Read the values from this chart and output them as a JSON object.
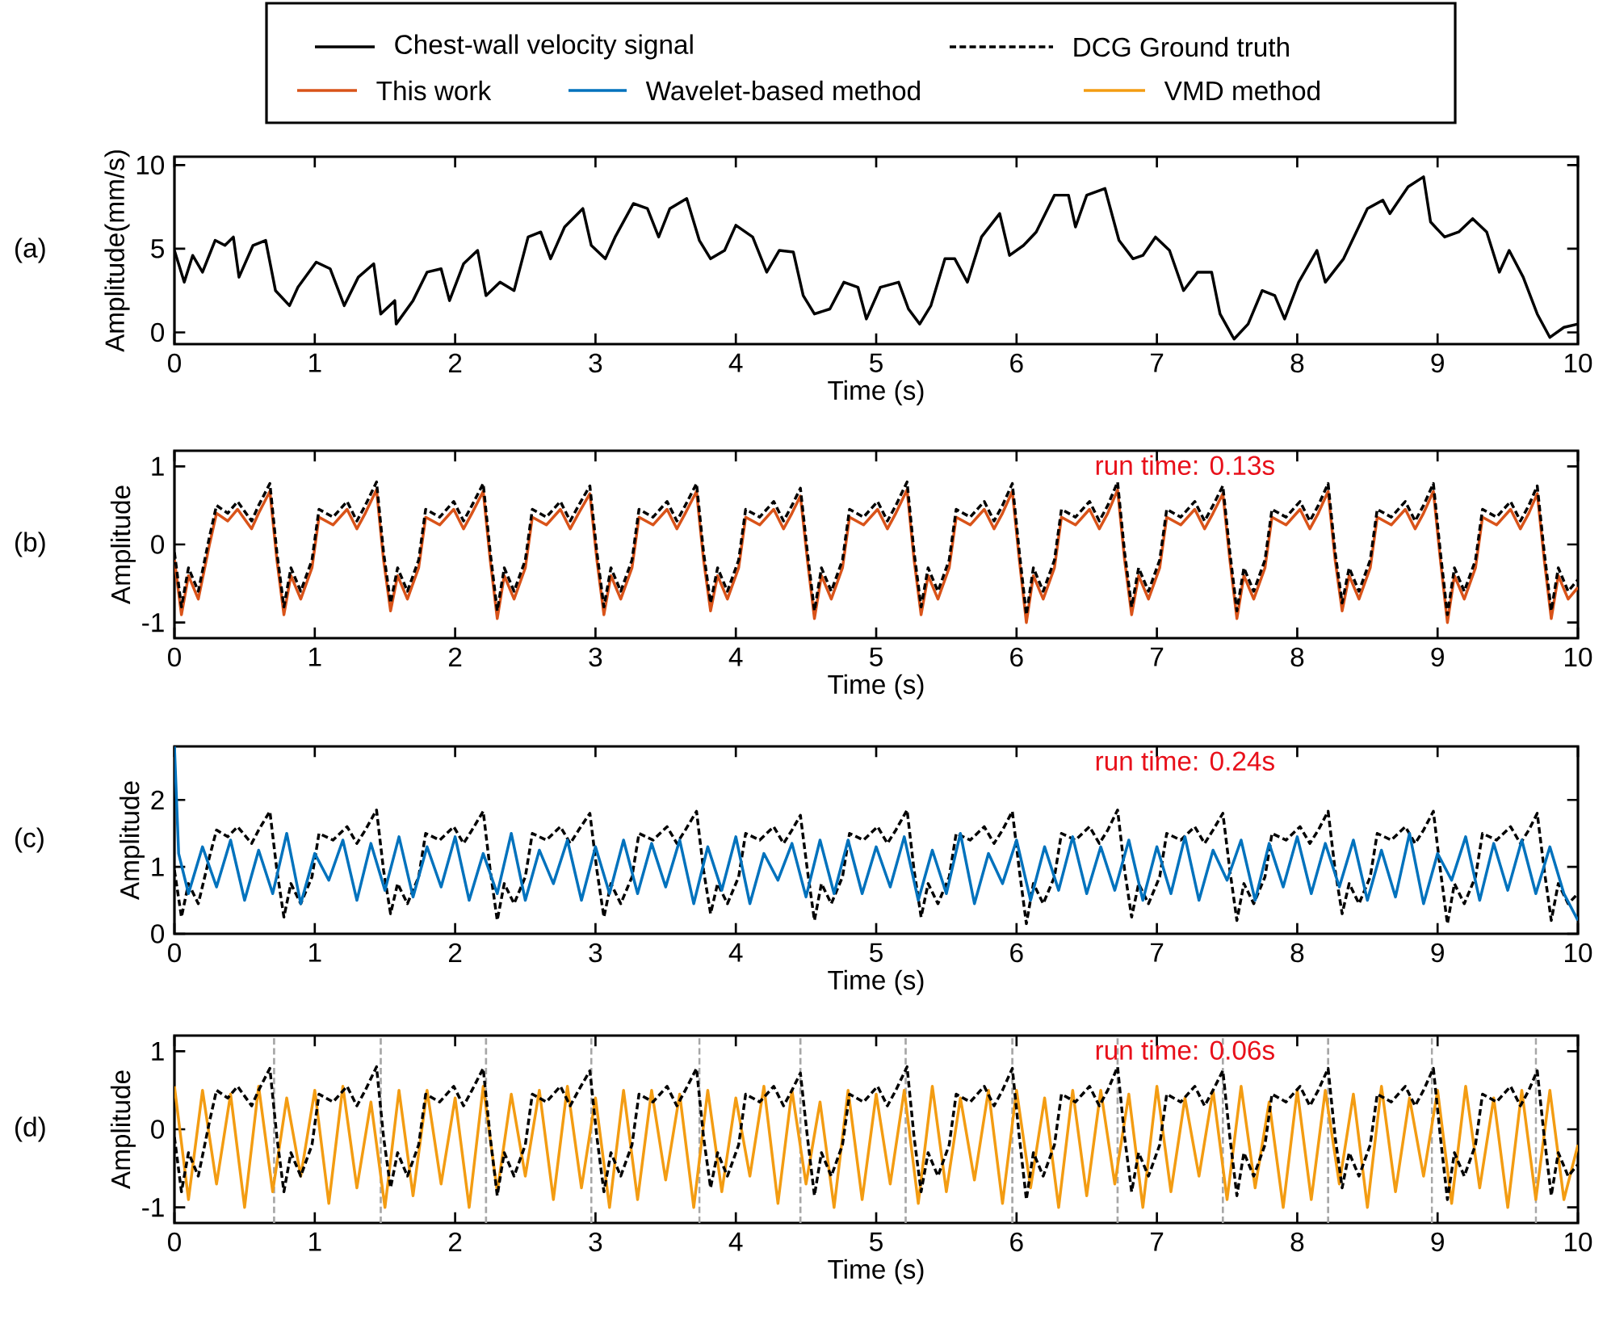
{
  "chart_data": [
    {
      "type": "line",
      "xlabel": "Time (s)",
      "ylabel": "Amplitude(mm/s)",
      "annotations": [
        "(a)"
      ],
      "legend": "top",
      "xlim": [
        0,
        10
      ],
      "ylim": [
        -0.7,
        10.5
      ],
      "xticks": [
        0,
        1,
        2,
        3,
        4,
        5,
        6,
        7,
        8,
        9,
        10
      ],
      "yticks": [
        0,
        5,
        10
      ],
      "x": [
        0,
        0.07,
        0.13,
        0.2,
        0.29,
        0.36,
        0.42,
        0.46,
        0.56,
        0.65,
        0.72,
        0.82,
        0.88,
        1.01,
        1.11,
        1.21,
        1.31,
        1.42,
        1.47,
        1.57,
        1.58,
        1.7,
        1.8,
        1.9,
        1.96,
        2.06,
        2.16,
        2.22,
        2.32,
        2.42,
        2.52,
        2.61,
        2.68,
        2.78,
        2.91,
        2.97,
        3.07,
        3.14,
        3.27,
        3.37,
        3.45,
        3.53,
        3.65,
        3.74,
        3.82,
        3.92,
        4.0,
        4.12,
        4.22,
        4.31,
        4.41,
        4.48,
        4.56,
        4.67,
        4.77,
        4.87,
        4.93,
        5.03,
        5.16,
        5.23,
        5.31,
        5.39,
        5.49,
        5.56,
        5.65,
        5.75,
        5.88,
        5.95,
        6.05,
        6.14,
        6.27,
        6.37,
        6.42,
        6.5,
        6.63,
        6.73,
        6.83,
        6.9,
        6.99,
        7.09,
        7.19,
        7.29,
        7.39,
        7.45,
        7.55,
        7.65,
        7.75,
        7.84,
        7.91,
        8.01,
        8.14,
        8.2,
        8.33,
        8.5,
        8.61,
        8.66,
        8.79,
        8.9,
        8.95,
        9.05,
        9.15,
        9.25,
        9.35,
        9.44,
        9.51,
        9.61,
        9.71,
        9.8,
        9.9,
        10
      ],
      "series": [
        {
          "name": "Chest-wall velocity signal",
          "color": "#000000",
          "values": [
            4.9,
            3.0,
            4.6,
            3.6,
            5.5,
            5.2,
            5.7,
            3.3,
            5.2,
            5.5,
            2.5,
            1.6,
            2.7,
            4.2,
            3.8,
            1.6,
            3.3,
            4.1,
            1.1,
            1.9,
            0.5,
            1.9,
            3.6,
            3.8,
            1.9,
            4.1,
            4.9,
            2.2,
            3.0,
            2.5,
            5.7,
            6.0,
            4.4,
            6.3,
            7.4,
            5.2,
            4.4,
            5.7,
            7.7,
            7.4,
            5.7,
            7.4,
            8.0,
            5.5,
            4.4,
            4.9,
            6.4,
            5.7,
            3.6,
            4.9,
            4.8,
            2.2,
            1.1,
            1.4,
            3.0,
            2.7,
            0.8,
            2.7,
            3.0,
            1.4,
            0.5,
            1.6,
            4.4,
            4.4,
            3.0,
            5.7,
            7.1,
            4.6,
            5.2,
            6.0,
            8.2,
            8.2,
            6.3,
            8.2,
            8.6,
            5.5,
            4.4,
            4.6,
            5.7,
            4.9,
            2.5,
            3.6,
            3.6,
            1.1,
            -0.4,
            0.5,
            2.5,
            2.2,
            0.8,
            3.0,
            4.9,
            3.0,
            4.4,
            7.4,
            7.9,
            7.1,
            8.7,
            9.3,
            6.6,
            5.7,
            6.0,
            6.8,
            6.0,
            3.6,
            4.9,
            3.3,
            1.1,
            -0.3,
            0.3,
            0.5
          ]
        }
      ]
    },
    {
      "type": "line",
      "xlabel": "Time (s)",
      "ylabel": "Amplitude",
      "annotations": [
        "(b)",
        "run time: 0.13s"
      ],
      "legend": "top",
      "xlim": [
        0,
        10
      ],
      "ylim": [
        -1.2,
        1.2
      ],
      "xticks": [
        0,
        1,
        2,
        3,
        4,
        5,
        6,
        7,
        8,
        9,
        10
      ],
      "yticks": [
        -1,
        0,
        1
      ],
      "x": [
        0,
        0.05,
        0.1,
        0.17,
        0.25,
        0.3,
        0.38,
        0.45,
        0.55,
        0.6,
        0.68,
        0.73,
        0.78,
        0.83,
        0.9,
        0.98,
        1.03,
        1.13,
        1.23,
        1.3,
        1.36,
        1.44,
        1.49,
        1.54,
        1.59,
        1.66,
        1.74,
        1.79,
        1.89,
        1.99,
        2.06,
        2.12,
        2.2,
        2.25,
        2.3,
        2.35,
        2.42,
        2.5,
        2.55,
        2.65,
        2.75,
        2.82,
        2.88,
        2.96,
        3.01,
        3.06,
        3.11,
        3.18,
        3.26,
        3.31,
        3.41,
        3.51,
        3.58,
        3.64,
        3.72,
        3.77,
        3.82,
        3.87,
        3.94,
        4.02,
        4.07,
        4.17,
        4.27,
        4.34,
        4.4,
        4.46,
        4.51,
        4.56,
        4.61,
        4.68,
        4.76,
        4.81,
        4.91,
        5.01,
        5.08,
        5.14,
        5.22,
        5.27,
        5.32,
        5.37,
        5.44,
        5.52,
        5.57,
        5.67,
        5.77,
        5.84,
        5.9,
        5.97,
        6.02,
        6.07,
        6.12,
        6.19,
        6.27,
        6.32,
        6.42,
        6.52,
        6.59,
        6.65,
        6.72,
        6.77,
        6.82,
        6.87,
        6.94,
        7.02,
        7.07,
        7.17,
        7.27,
        7.34,
        7.4,
        7.47,
        7.52,
        7.57,
        7.62,
        7.69,
        7.77,
        7.82,
        7.92,
        8.02,
        8.09,
        8.15,
        8.22,
        8.27,
        8.32,
        8.37,
        8.44,
        8.52,
        8.57,
        8.67,
        8.77,
        8.84,
        8.9,
        8.97,
        9.02,
        9.07,
        9.12,
        9.19,
        9.27,
        9.32,
        9.42,
        9.52,
        9.59,
        9.65,
        9.71,
        9.76,
        9.81,
        9.86,
        9.93,
        10
      ],
      "series": [
        {
          "name": "This work",
          "color": "#d95319",
          "values": [
            -0.2,
            -0.9,
            -0.4,
            -0.7,
            0.0,
            0.4,
            0.3,
            0.45,
            0.2,
            0.4,
            0.68,
            -0.2,
            -0.9,
            -0.4,
            -0.7,
            -0.3,
            0.35,
            0.25,
            0.45,
            0.2,
            0.4,
            0.7,
            -0.2,
            -0.85,
            -0.4,
            -0.7,
            -0.3,
            0.35,
            0.25,
            0.45,
            0.2,
            0.4,
            0.68,
            -0.2,
            -0.95,
            -0.4,
            -0.7,
            -0.3,
            0.35,
            0.25,
            0.45,
            0.2,
            0.4,
            0.65,
            -0.2,
            -0.9,
            -0.4,
            -0.7,
            -0.3,
            0.35,
            0.25,
            0.45,
            0.2,
            0.4,
            0.68,
            -0.2,
            -0.85,
            -0.4,
            -0.7,
            -0.3,
            0.35,
            0.25,
            0.45,
            0.2,
            0.4,
            0.62,
            -0.2,
            -0.95,
            -0.4,
            -0.7,
            -0.3,
            0.35,
            0.25,
            0.45,
            0.2,
            0.4,
            0.7,
            -0.2,
            -0.9,
            -0.4,
            -0.7,
            -0.3,
            0.35,
            0.25,
            0.45,
            0.2,
            0.4,
            0.68,
            -0.2,
            -1.0,
            -0.4,
            -0.7,
            -0.3,
            0.35,
            0.25,
            0.45,
            0.2,
            0.4,
            0.7,
            -0.2,
            -0.9,
            -0.4,
            -0.7,
            -0.3,
            0.35,
            0.25,
            0.45,
            0.2,
            0.4,
            0.65,
            -0.2,
            -0.95,
            -0.4,
            -0.7,
            -0.3,
            0.35,
            0.25,
            0.45,
            0.2,
            0.4,
            0.68,
            -0.2,
            -0.85,
            -0.4,
            -0.7,
            -0.3,
            0.35,
            0.25,
            0.45,
            0.2,
            0.4,
            0.68,
            -0.2,
            -1.0,
            -0.4,
            -0.7,
            -0.3,
            0.35,
            0.25,
            0.45,
            0.2,
            0.4,
            0.65,
            -0.2,
            -0.95,
            -0.4,
            -0.7,
            -0.55
          ]
        },
        {
          "name": "DCG Ground truth",
          "color": "#000000",
          "line_style": "dashed",
          "values": [
            -0.1,
            -0.8,
            -0.3,
            -0.6,
            0.1,
            0.5,
            0.4,
            0.55,
            0.3,
            0.5,
            0.78,
            -0.1,
            -0.8,
            -0.3,
            -0.6,
            -0.2,
            0.45,
            0.35,
            0.55,
            0.3,
            0.5,
            0.8,
            -0.1,
            -0.75,
            -0.3,
            -0.6,
            -0.2,
            0.45,
            0.35,
            0.55,
            0.3,
            0.5,
            0.78,
            -0.1,
            -0.85,
            -0.3,
            -0.6,
            -0.2,
            0.45,
            0.35,
            0.55,
            0.3,
            0.5,
            0.75,
            -0.1,
            -0.8,
            -0.3,
            -0.6,
            -0.2,
            0.45,
            0.35,
            0.55,
            0.3,
            0.5,
            0.78,
            -0.1,
            -0.75,
            -0.3,
            -0.6,
            -0.2,
            0.45,
            0.35,
            0.55,
            0.3,
            0.5,
            0.72,
            -0.1,
            -0.85,
            -0.3,
            -0.6,
            -0.2,
            0.45,
            0.35,
            0.55,
            0.3,
            0.5,
            0.8,
            -0.1,
            -0.8,
            -0.3,
            -0.6,
            -0.2,
            0.45,
            0.35,
            0.55,
            0.3,
            0.5,
            0.78,
            -0.1,
            -0.9,
            -0.3,
            -0.6,
            -0.2,
            0.45,
            0.35,
            0.55,
            0.3,
            0.5,
            0.8,
            -0.1,
            -0.8,
            -0.3,
            -0.6,
            -0.2,
            0.45,
            0.35,
            0.55,
            0.3,
            0.5,
            0.75,
            -0.1,
            -0.85,
            -0.3,
            -0.6,
            -0.2,
            0.45,
            0.35,
            0.55,
            0.3,
            0.5,
            0.78,
            -0.1,
            -0.75,
            -0.3,
            -0.6,
            -0.2,
            0.45,
            0.35,
            0.55,
            0.3,
            0.5,
            0.78,
            -0.1,
            -0.9,
            -0.3,
            -0.6,
            -0.2,
            0.45,
            0.35,
            0.55,
            0.3,
            0.5,
            0.75,
            -0.1,
            -0.85,
            -0.3,
            -0.6,
            -0.45
          ]
        }
      ]
    },
    {
      "type": "line",
      "xlabel": "Time (s)",
      "ylabel": "Amplitude",
      "annotations": [
        "(c)",
        "run time: 0.24s"
      ],
      "legend": "top",
      "xlim": [
        0,
        10
      ],
      "ylim": [
        0,
        2.8
      ],
      "xticks": [
        0,
        1,
        2,
        3,
        4,
        5,
        6,
        7,
        8,
        9,
        10
      ],
      "yticks": [
        0,
        1,
        2
      ],
      "x": [
        0,
        0.05,
        0.1,
        0.17,
        0.25,
        0.3,
        0.38,
        0.45,
        0.55,
        0.6,
        0.68,
        0.73,
        0.78,
        0.83,
        0.9,
        0.98,
        1.03,
        1.13,
        1.23,
        1.3,
        1.36,
        1.44,
        1.49,
        1.54,
        1.59,
        1.66,
        1.74,
        1.79,
        1.89,
        1.99,
        2.06,
        2.12,
        2.2,
        2.25,
        2.3,
        2.35,
        2.42,
        2.5,
        2.55,
        2.65,
        2.75,
        2.82,
        2.88,
        2.96,
        3.01,
        3.06,
        3.11,
        3.18,
        3.26,
        3.31,
        3.41,
        3.51,
        3.58,
        3.64,
        3.72,
        3.77,
        3.82,
        3.87,
        3.94,
        4.02,
        4.07,
        4.17,
        4.27,
        4.34,
        4.4,
        4.46,
        4.51,
        4.56,
        4.61,
        4.68,
        4.76,
        4.81,
        4.91,
        5.01,
        5.08,
        5.14,
        5.22,
        5.27,
        5.32,
        5.37,
        5.44,
        5.52,
        5.57,
        5.67,
        5.77,
        5.84,
        5.9,
        5.97,
        6.02,
        6.07,
        6.12,
        6.19,
        6.27,
        6.32,
        6.42,
        6.52,
        6.59,
        6.65,
        6.72,
        6.77,
        6.82,
        6.87,
        6.94,
        7.02,
        7.07,
        7.17,
        7.27,
        7.34,
        7.4,
        7.47,
        7.52,
        7.57,
        7.62,
        7.69,
        7.77,
        7.82,
        7.92,
        8.02,
        8.09,
        8.15,
        8.22,
        8.27,
        8.32,
        8.37,
        8.44,
        8.52,
        8.57,
        8.67,
        8.77,
        8.84,
        8.9,
        8.97,
        9.02,
        9.07,
        9.12,
        9.19,
        9.27,
        9.32,
        9.42,
        9.52,
        9.59,
        9.65,
        9.71,
        9.76,
        9.81,
        9.86,
        9.93,
        10
      ],
      "series": [
        {
          "color": "#000000",
          "line_style": "dashed",
          "values": [
            0.95,
            0.25,
            0.75,
            0.45,
            1.15,
            1.55,
            1.45,
            1.6,
            1.35,
            1.55,
            1.83,
            0.95,
            0.25,
            0.75,
            0.45,
            0.85,
            1.5,
            1.4,
            1.6,
            1.35,
            1.55,
            1.85,
            0.95,
            0.3,
            0.75,
            0.45,
            0.85,
            1.5,
            1.4,
            1.6,
            1.35,
            1.55,
            1.83,
            0.95,
            0.2,
            0.75,
            0.45,
            0.85,
            1.5,
            1.4,
            1.6,
            1.35,
            1.55,
            1.8,
            0.95,
            0.25,
            0.75,
            0.45,
            0.85,
            1.5,
            1.4,
            1.6,
            1.35,
            1.55,
            1.83,
            0.95,
            0.3,
            0.75,
            0.45,
            0.85,
            1.5,
            1.4,
            1.6,
            1.35,
            1.55,
            1.77,
            0.95,
            0.2,
            0.75,
            0.45,
            0.85,
            1.5,
            1.4,
            1.6,
            1.35,
            1.55,
            1.85,
            0.95,
            0.25,
            0.75,
            0.45,
            0.85,
            1.5,
            1.4,
            1.6,
            1.35,
            1.55,
            1.83,
            0.95,
            0.15,
            0.75,
            0.45,
            0.85,
            1.5,
            1.4,
            1.6,
            1.35,
            1.55,
            1.85,
            0.95,
            0.25,
            0.75,
            0.45,
            0.85,
            1.5,
            1.4,
            1.6,
            1.35,
            1.55,
            1.8,
            0.95,
            0.2,
            0.75,
            0.45,
            0.85,
            1.5,
            1.4,
            1.6,
            1.35,
            1.55,
            1.83,
            0.95,
            0.3,
            0.75,
            0.45,
            0.85,
            1.5,
            1.4,
            1.6,
            1.35,
            1.55,
            1.83,
            0.95,
            0.15,
            0.75,
            0.45,
            0.85,
            1.5,
            1.4,
            1.6,
            1.35,
            1.55,
            1.8,
            0.95,
            0.2,
            0.75,
            0.45,
            0.6
          ]
        },
        {
          "name": "Wavelet-based method",
          "color": "#0072bd",
          "x": [
            0,
            0.03,
            0.1,
            0.2,
            0.3,
            0.4,
            0.5,
            0.6,
            0.7,
            0.8,
            0.9,
            1.0,
            1.1,
            1.2,
            1.3,
            1.4,
            1.5,
            1.6,
            1.7,
            1.8,
            1.9,
            2.0,
            2.1,
            2.2,
            2.3,
            2.4,
            2.5,
            2.6,
            2.7,
            2.8,
            2.9,
            3.0,
            3.1,
            3.2,
            3.3,
            3.4,
            3.5,
            3.6,
            3.7,
            3.8,
            3.9,
            4.0,
            4.1,
            4.2,
            4.3,
            4.4,
            4.5,
            4.6,
            4.7,
            4.8,
            4.9,
            5.0,
            5.1,
            5.2,
            5.3,
            5.4,
            5.5,
            5.6,
            5.7,
            5.8,
            5.9,
            6.0,
            6.1,
            6.2,
            6.3,
            6.4,
            6.5,
            6.6,
            6.7,
            6.8,
            6.9,
            7.0,
            7.1,
            7.2,
            7.3,
            7.4,
            7.5,
            7.6,
            7.7,
            7.8,
            7.9,
            8.0,
            8.1,
            8.2,
            8.3,
            8.4,
            8.5,
            8.6,
            8.7,
            8.8,
            8.9,
            9.0,
            9.1,
            9.2,
            9.3,
            9.4,
            9.5,
            9.6,
            9.7,
            9.8,
            9.9,
            10
          ],
          "values": [
            2.8,
            1.2,
            0.6,
            1.3,
            0.7,
            1.4,
            0.5,
            1.25,
            0.6,
            1.5,
            0.45,
            1.2,
            0.8,
            1.4,
            0.5,
            1.35,
            0.65,
            1.45,
            0.55,
            1.3,
            0.7,
            1.45,
            0.5,
            1.2,
            0.6,
            1.5,
            0.5,
            1.25,
            0.75,
            1.4,
            0.5,
            1.3,
            0.6,
            1.4,
            0.6,
            1.35,
            0.7,
            1.4,
            0.45,
            1.3,
            0.65,
            1.45,
            0.45,
            1.2,
            0.8,
            1.35,
            0.55,
            1.4,
            0.6,
            1.4,
            0.6,
            1.3,
            0.7,
            1.45,
            0.5,
            1.25,
            0.6,
            1.5,
            0.45,
            1.2,
            0.75,
            1.4,
            0.5,
            1.3,
            0.65,
            1.45,
            0.6,
            1.3,
            0.65,
            1.4,
            0.5,
            1.3,
            0.6,
            1.45,
            0.5,
            1.25,
            0.8,
            1.4,
            0.5,
            1.35,
            0.7,
            1.45,
            0.6,
            1.35,
            0.7,
            1.4,
            0.5,
            1.25,
            0.55,
            1.5,
            0.45,
            1.2,
            0.8,
            1.45,
            0.5,
            1.35,
            0.65,
            1.4,
            0.6,
            1.3,
            0.6,
            0.2
          ]
        }
      ]
    },
    {
      "type": "line",
      "xlabel": "Time (s)",
      "ylabel": "Amplitude",
      "annotations": [
        "(d)",
        "run time: 0.06s"
      ],
      "legend": "top",
      "xlim": [
        0,
        10
      ],
      "ylim": [
        -1.2,
        1.2
      ],
      "xticks": [
        0,
        1,
        2,
        3,
        4,
        5,
        6,
        7,
        8,
        9,
        10
      ],
      "yticks": [
        -1,
        0,
        1
      ],
      "ref_lines": [
        {
          "axis": "x",
          "value": 0.71,
          "color": "#a6a6a6",
          "line_style": "dashed"
        },
        {
          "axis": "x",
          "value": 1.47,
          "color": "#a6a6a6",
          "line_style": "dashed"
        },
        {
          "axis": "x",
          "value": 2.22,
          "color": "#a6a6a6",
          "line_style": "dashed"
        },
        {
          "axis": "x",
          "value": 2.97,
          "color": "#a6a6a6",
          "line_style": "dashed"
        },
        {
          "axis": "x",
          "value": 3.74,
          "color": "#a6a6a6",
          "line_style": "dashed"
        },
        {
          "axis": "x",
          "value": 4.46,
          "color": "#a6a6a6",
          "line_style": "dashed"
        },
        {
          "axis": "x",
          "value": 5.21,
          "color": "#a6a6a6",
          "line_style": "dashed"
        },
        {
          "axis": "x",
          "value": 5.97,
          "color": "#a6a6a6",
          "line_style": "dashed"
        },
        {
          "axis": "x",
          "value": 6.72,
          "color": "#a6a6a6",
          "line_style": "dashed"
        },
        {
          "axis": "x",
          "value": 7.47,
          "color": "#a6a6a6",
          "line_style": "dashed"
        },
        {
          "axis": "x",
          "value": 8.22,
          "color": "#a6a6a6",
          "line_style": "dashed"
        },
        {
          "axis": "x",
          "value": 8.96,
          "color": "#a6a6a6",
          "line_style": "dashed"
        },
        {
          "axis": "x",
          "value": 9.7,
          "color": "#a6a6a6",
          "line_style": "dashed"
        }
      ],
      "x": [
        0,
        0.05,
        0.1,
        0.17,
        0.25,
        0.3,
        0.38,
        0.45,
        0.55,
        0.6,
        0.68,
        0.73,
        0.78,
        0.83,
        0.9,
        0.98,
        1.03,
        1.13,
        1.23,
        1.3,
        1.36,
        1.44,
        1.49,
        1.54,
        1.59,
        1.66,
        1.74,
        1.79,
        1.89,
        1.99,
        2.06,
        2.12,
        2.2,
        2.25,
        2.3,
        2.35,
        2.42,
        2.5,
        2.55,
        2.65,
        2.75,
        2.82,
        2.88,
        2.96,
        3.01,
        3.06,
        3.11,
        3.18,
        3.26,
        3.31,
        3.41,
        3.51,
        3.58,
        3.64,
        3.72,
        3.77,
        3.82,
        3.87,
        3.94,
        4.02,
        4.07,
        4.17,
        4.27,
        4.34,
        4.4,
        4.46,
        4.51,
        4.56,
        4.61,
        4.68,
        4.76,
        4.81,
        4.91,
        5.01,
        5.08,
        5.14,
        5.22,
        5.27,
        5.32,
        5.37,
        5.44,
        5.52,
        5.57,
        5.67,
        5.77,
        5.84,
        5.9,
        5.97,
        6.02,
        6.07,
        6.12,
        6.19,
        6.27,
        6.32,
        6.42,
        6.52,
        6.59,
        6.65,
        6.72,
        6.77,
        6.82,
        6.87,
        6.94,
        7.02,
        7.07,
        7.17,
        7.27,
        7.34,
        7.4,
        7.47,
        7.52,
        7.57,
        7.62,
        7.69,
        7.77,
        7.82,
        7.92,
        8.02,
        8.09,
        8.15,
        8.22,
        8.27,
        8.32,
        8.37,
        8.44,
        8.52,
        8.57,
        8.67,
        8.77,
        8.84,
        8.9,
        8.97,
        9.02,
        9.07,
        9.12,
        9.19,
        9.27,
        9.32,
        9.42,
        9.52,
        9.59,
        9.65,
        9.71,
        9.76,
        9.81,
        9.86,
        9.93,
        10
      ],
      "series": [
        {
          "name": "VMD method",
          "color": "#f39c12",
          "x": [
            0,
            0.1,
            0.2,
            0.3,
            0.4,
            0.5,
            0.6,
            0.7,
            0.8,
            0.9,
            1.0,
            1.1,
            1.2,
            1.3,
            1.4,
            1.5,
            1.6,
            1.7,
            1.8,
            1.9,
            2.0,
            2.1,
            2.2,
            2.3,
            2.4,
            2.5,
            2.6,
            2.7,
            2.8,
            2.9,
            3.0,
            3.1,
            3.2,
            3.3,
            3.4,
            3.5,
            3.6,
            3.7,
            3.8,
            3.9,
            4.0,
            4.1,
            4.2,
            4.3,
            4.4,
            4.5,
            4.6,
            4.7,
            4.8,
            4.9,
            5.0,
            5.1,
            5.2,
            5.3,
            5.4,
            5.5,
            5.6,
            5.7,
            5.8,
            5.9,
            6.0,
            6.1,
            6.2,
            6.3,
            6.4,
            6.5,
            6.6,
            6.7,
            6.8,
            6.9,
            7.0,
            7.1,
            7.2,
            7.3,
            7.4,
            7.5,
            7.6,
            7.7,
            7.8,
            7.9,
            8.0,
            8.1,
            8.2,
            8.3,
            8.4,
            8.5,
            8.6,
            8.7,
            8.8,
            8.9,
            9.0,
            9.1,
            9.2,
            9.3,
            9.4,
            9.5,
            9.6,
            9.7,
            9.8,
            9.9,
            10
          ],
          "values": [
            0.55,
            -0.9,
            0.5,
            -0.7,
            0.45,
            -1.0,
            0.55,
            -0.8,
            0.4,
            -0.6,
            0.5,
            -0.95,
            0.55,
            -0.75,
            0.35,
            -1.0,
            0.5,
            -0.85,
            0.5,
            -0.7,
            0.4,
            -1.0,
            0.55,
            -0.8,
            0.45,
            -0.6,
            0.5,
            -0.9,
            0.55,
            -0.75,
            0.4,
            -1.0,
            0.5,
            -0.9,
            0.5,
            -0.65,
            0.45,
            -1.0,
            0.5,
            -0.8,
            0.4,
            -0.6,
            0.55,
            -0.95,
            0.5,
            -0.7,
            0.35,
            -1.0,
            0.5,
            -0.9,
            0.45,
            -0.7,
            0.5,
            -0.95,
            0.55,
            -0.8,
            0.4,
            -0.65,
            0.5,
            -0.95,
            0.5,
            -0.75,
            0.4,
            -1.0,
            0.5,
            -0.85,
            0.5,
            -0.7,
            0.45,
            -1.0,
            0.55,
            -0.8,
            0.4,
            -0.6,
            0.5,
            -0.9,
            0.55,
            -0.75,
            0.35,
            -1.0,
            0.5,
            -0.9,
            0.5,
            -0.7,
            0.45,
            -1.0,
            0.55,
            -0.8,
            0.4,
            -0.6,
            0.5,
            -0.95,
            0.55,
            -0.75,
            0.4,
            -1.0,
            0.5,
            -0.9,
            0.5,
            -0.9,
            -0.2
          ]
        },
        {
          "color": "#000000",
          "line_style": "dashed",
          "values": [
            -0.1,
            -0.8,
            -0.3,
            -0.6,
            0.1,
            0.5,
            0.4,
            0.55,
            0.3,
            0.5,
            0.78,
            -0.1,
            -0.8,
            -0.3,
            -0.6,
            -0.2,
            0.45,
            0.35,
            0.55,
            0.3,
            0.5,
            0.8,
            -0.1,
            -0.75,
            -0.3,
            -0.6,
            -0.2,
            0.45,
            0.35,
            0.55,
            0.3,
            0.5,
            0.78,
            -0.1,
            -0.85,
            -0.3,
            -0.6,
            -0.2,
            0.45,
            0.35,
            0.55,
            0.3,
            0.5,
            0.75,
            -0.1,
            -0.8,
            -0.3,
            -0.6,
            -0.2,
            0.45,
            0.35,
            0.55,
            0.3,
            0.5,
            0.78,
            -0.1,
            -0.75,
            -0.3,
            -0.6,
            -0.2,
            0.45,
            0.35,
            0.55,
            0.3,
            0.5,
            0.72,
            -0.1,
            -0.85,
            -0.3,
            -0.6,
            -0.2,
            0.45,
            0.35,
            0.55,
            0.3,
            0.5,
            0.8,
            -0.1,
            -0.8,
            -0.3,
            -0.6,
            -0.2,
            0.45,
            0.35,
            0.55,
            0.3,
            0.5,
            0.78,
            -0.1,
            -0.9,
            -0.3,
            -0.6,
            -0.2,
            0.45,
            0.35,
            0.55,
            0.3,
            0.5,
            0.8,
            -0.1,
            -0.8,
            -0.3,
            -0.6,
            -0.2,
            0.45,
            0.35,
            0.55,
            0.3,
            0.5,
            0.75,
            -0.1,
            -0.85,
            -0.3,
            -0.6,
            -0.2,
            0.45,
            0.35,
            0.55,
            0.3,
            0.5,
            0.78,
            -0.1,
            -0.75,
            -0.3,
            -0.6,
            -0.2,
            0.45,
            0.35,
            0.55,
            0.3,
            0.5,
            0.78,
            -0.1,
            -0.9,
            -0.3,
            -0.6,
            -0.2,
            0.45,
            0.35,
            0.55,
            0.3,
            0.5,
            0.75,
            -0.1,
            -0.85,
            -0.3,
            -0.6,
            -0.45
          ]
        }
      ]
    }
  ]
}
